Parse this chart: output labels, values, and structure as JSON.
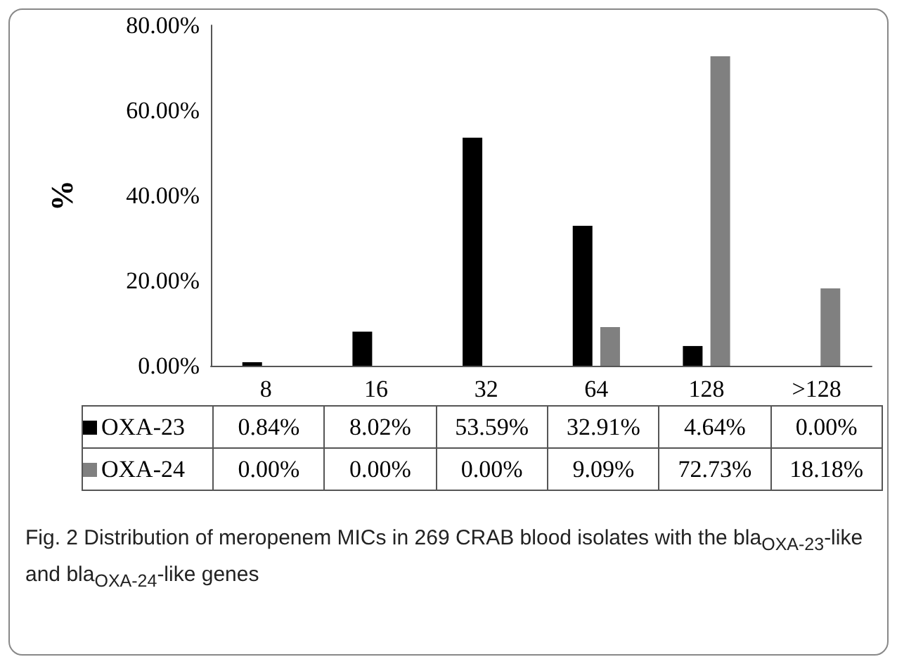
{
  "chart_data": {
    "type": "bar",
    "ylabel": "%",
    "categories": [
      "8",
      "16",
      "32",
      "64",
      "128",
      ">128"
    ],
    "series": [
      {
        "name": "OXA-23",
        "color": "#000000",
        "values": [
          0.84,
          8.02,
          53.59,
          32.91,
          4.64,
          0.0
        ],
        "value_labels": [
          "0.84%",
          "8.02%",
          "53.59%",
          "32.91%",
          "4.64%",
          "0.00%"
        ]
      },
      {
        "name": "OXA-24",
        "color": "#808080",
        "values": [
          0.0,
          0.0,
          0.0,
          9.09,
          72.73,
          18.18
        ],
        "value_labels": [
          "0.00%",
          "0.00%",
          "0.00%",
          "9.09%",
          "72.73%",
          "18.18%"
        ]
      }
    ],
    "ylim": [
      0,
      80
    ],
    "yticks": [
      {
        "value": 0,
        "label": "0.00%"
      },
      {
        "value": 20,
        "label": "20.00%"
      },
      {
        "value": 40,
        "label": "40.00%"
      },
      {
        "value": 60,
        "label": "60.00%"
      },
      {
        "value": 80,
        "label": "80.00%"
      }
    ],
    "grid": false,
    "legend": "bottom",
    "annotations": [
      "Fig. 2 Distribution of meropenem MICs in 269 CRAB blood isolates with the bla$_{OXA-23}$-like and bla$_{OXA-24}$-like genes"
    ]
  }
}
